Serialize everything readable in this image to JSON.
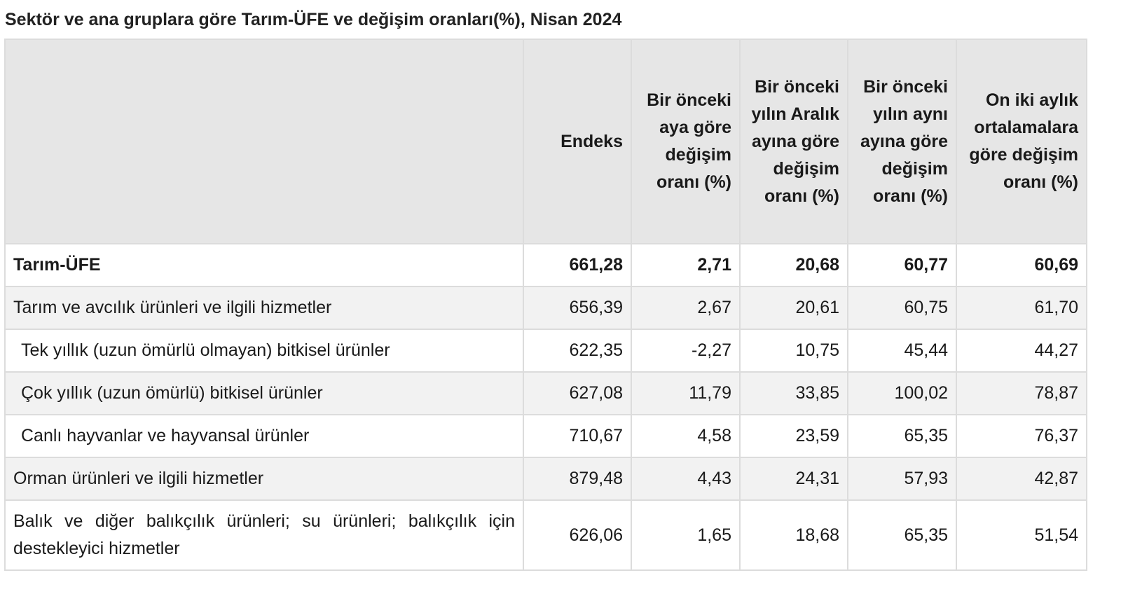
{
  "title": "Sektör ve ana gruplara göre Tarım-ÜFE ve değişim oranları(%), Nisan 2024",
  "table": {
    "headers": [
      "",
      "Endeks",
      "Bir önceki aya göre değişim oranı (%)",
      "Bir önceki yılın Aralık ayına göre değişim oranı (%)",
      "Bir önceki yılın aynı ayına göre değişim oranı (%)",
      "On iki aylık ortalamalara göre değişim oranı (%)"
    ],
    "rows": [
      {
        "label": "Tarım-ÜFE",
        "values": [
          "661,28",
          "2,71",
          "20,68",
          "60,77",
          "60,69"
        ]
      },
      {
        "label": "Tarım ve avcılık ürünleri ve ilgili hizmetler",
        "values": [
          "656,39",
          "2,67",
          "20,61",
          "60,75",
          "61,70"
        ]
      },
      {
        "label": "Tek yıllık (uzun ömürlü olmayan) bitkisel ürünler",
        "values": [
          "622,35",
          "-2,27",
          "10,75",
          "45,44",
          "44,27"
        ]
      },
      {
        "label": "Çok yıllık (uzun ömürlü) bitkisel ürünler",
        "values": [
          "627,08",
          "11,79",
          "33,85",
          "100,02",
          "78,87"
        ]
      },
      {
        "label": "Canlı hayvanlar ve hayvansal ürünler",
        "values": [
          "710,67",
          "4,58",
          "23,59",
          "65,35",
          "76,37"
        ]
      },
      {
        "label": "Orman ürünleri ve ilgili hizmetler",
        "values": [
          "879,48",
          "4,43",
          "24,31",
          "57,93",
          "42,87"
        ]
      },
      {
        "label": "Balık ve diğer balıkçılık ürünleri; su ürünleri; balıkçılık için destekleyici hizmetler",
        "values": [
          "626,06",
          "1,65",
          "18,68",
          "65,35",
          "51,54"
        ]
      }
    ]
  }
}
